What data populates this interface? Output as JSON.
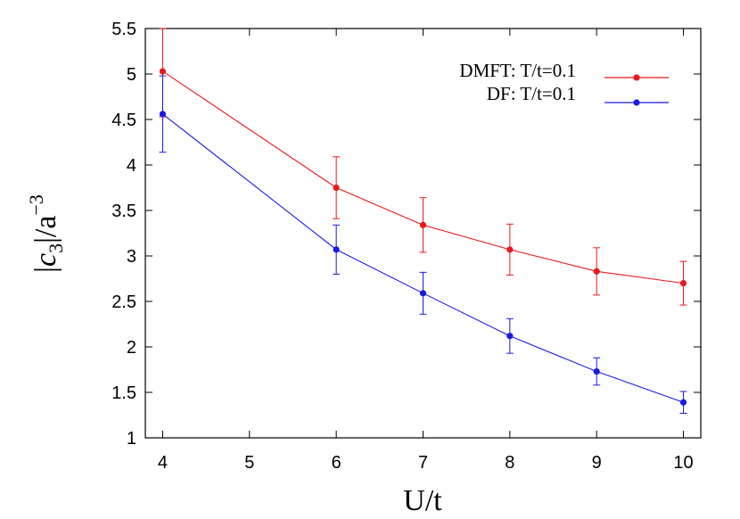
{
  "chart_data": {
    "type": "line",
    "title": "",
    "xlabel": "U/t",
    "ylabel_parts": {
      "open": "|",
      "var": "c",
      "sub": "3",
      "close": "|/a",
      "sup": "−3"
    },
    "xlim": [
      3.8,
      10.2
    ],
    "ylim": [
      1,
      5.5
    ],
    "xticks": [
      4,
      5,
      6,
      7,
      8,
      9,
      10
    ],
    "yticks": [
      1,
      1.5,
      2,
      2.5,
      3,
      3.5,
      4,
      4.5,
      5,
      5.5
    ],
    "grid": false,
    "legend_position": "top-right",
    "series": [
      {
        "name": "DMFT: T/t=0.1",
        "color": "#e8191b",
        "x": [
          4,
          6,
          7,
          8,
          9,
          10
        ],
        "y": [
          5.03,
          3.75,
          3.34,
          3.07,
          2.83,
          2.7
        ],
        "err": [
          0.5,
          0.34,
          0.3,
          0.28,
          0.26,
          0.24
        ]
      },
      {
        "name": "DF: T/t=0.1",
        "color": "#1a1ae6",
        "x": [
          4,
          6,
          7,
          8,
          9,
          10
        ],
        "y": [
          4.56,
          3.07,
          2.59,
          2.12,
          1.73,
          1.39
        ],
        "err": [
          0.42,
          0.27,
          0.23,
          0.19,
          0.15,
          0.12
        ]
      }
    ]
  }
}
